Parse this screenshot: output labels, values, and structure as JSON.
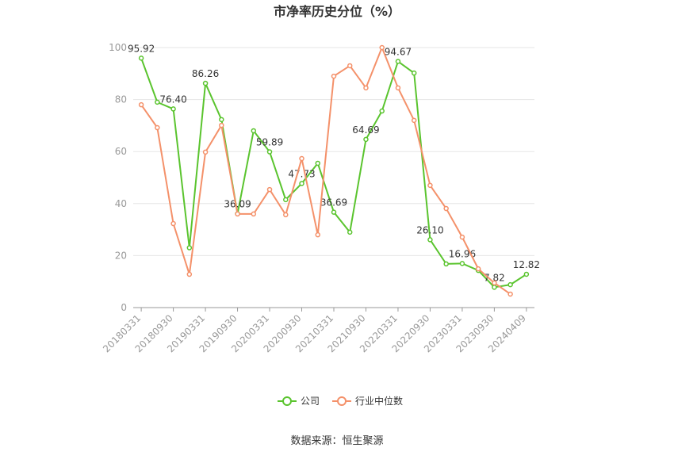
{
  "chart_data": {
    "type": "line",
    "title": "市净率历史分位（%）",
    "categories": [
      "20180331",
      null,
      "20180930",
      null,
      "20190331",
      null,
      "20190930",
      null,
      "20200331",
      null,
      "20200930",
      null,
      "20210331",
      null,
      "20210930",
      null,
      "20220331",
      null,
      "20220930",
      null,
      "20230331",
      null,
      "20230930",
      null,
      "20240409"
    ],
    "series": [
      {
        "name": "公司",
        "color": "#5ac42e",
        "values": [
          95.92,
          79,
          76.4,
          23,
          86.26,
          72.3,
          36.09,
          68,
          59.89,
          41.5,
          47.73,
          55.5,
          36.69,
          29,
          64.69,
          75.6,
          94.67,
          90.2,
          26.1,
          16.8,
          16.96,
          14.3,
          7.82,
          8.8,
          12.82
        ],
        "value_labels": [
          "95.92",
          null,
          "76.40",
          null,
          "86.26",
          null,
          "36.09",
          null,
          "59.89",
          null,
          "47.73",
          null,
          "36.69",
          null,
          "64.69",
          null,
          "94.67",
          null,
          "26.10",
          null,
          "16.96",
          null,
          "7.82",
          null,
          "12.82"
        ]
      },
      {
        "name": "行业中位数",
        "color": "#f4916a",
        "values": [
          78,
          69.2,
          32.3,
          12.8,
          59.8,
          70.1,
          36,
          36,
          45.4,
          35.7,
          57.3,
          28,
          89,
          93,
          84.5,
          100,
          84.5,
          72,
          47,
          38.1,
          27.1,
          14.9,
          9.5,
          5.2,
          null
        ]
      }
    ],
    "ylim": [
      0,
      100
    ],
    "yticks": [
      0,
      20,
      40,
      60,
      80,
      100
    ],
    "grid": true,
    "legend": "bottom",
    "source": "数据来源：恒生聚源"
  }
}
